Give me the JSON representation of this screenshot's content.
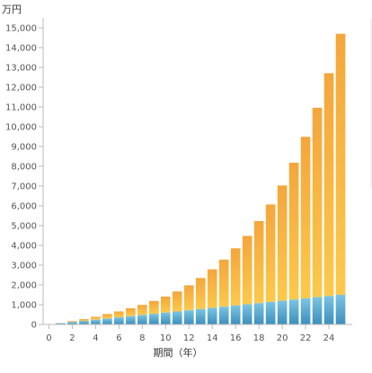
{
  "chart_data": {
    "type": "bar",
    "stacked": true,
    "unit_label": "万円",
    "xlabel": "期間（年）",
    "ylabel": "",
    "ylim": [
      0,
      15500
    ],
    "y_ticks": [
      0,
      1000,
      2000,
      3000,
      4000,
      5000,
      6000,
      7000,
      8000,
      9000,
      10000,
      11000,
      12000,
      13000,
      14000,
      15000
    ],
    "y_tick_labels": [
      "0",
      "1,000",
      "2,000",
      "3,000",
      "4,000",
      "5,000",
      "6,000",
      "7,000",
      "8,000",
      "9,000",
      "10,000",
      "11,000",
      "12,000",
      "13,000",
      "14,000",
      "15,000"
    ],
    "x_ticks": [
      0,
      2,
      4,
      6,
      8,
      10,
      12,
      14,
      16,
      18,
      20,
      22,
      24
    ],
    "x": [
      1,
      2,
      3,
      4,
      5,
      6,
      7,
      8,
      9,
      10,
      11,
      12,
      13,
      14,
      15,
      16,
      17,
      18,
      19,
      20,
      21,
      22,
      23,
      24,
      25
    ],
    "colors": {
      "principal_light": "#7cc4e2",
      "principal_dark": "#3c8fbd",
      "gain_light": "#fcc94c",
      "gain_dark": "#f4a63c"
    },
    "series": [
      {
        "key": "principal",
        "values": [
          60,
          120,
          180,
          240,
          300,
          360,
          420,
          480,
          540,
          600,
          660,
          720,
          780,
          840,
          900,
          960,
          1020,
          1080,
          1140,
          1200,
          1260,
          1320,
          1380,
          1440,
          1500
        ]
      },
      {
        "key": "gain",
        "values": [
          15,
          50,
          90,
          150,
          230,
          300,
          400,
          510,
          650,
          810,
          1010,
          1260,
          1570,
          1950,
          2380,
          2890,
          3460,
          4150,
          4930,
          5830,
          6920,
          8170,
          9580,
          11270,
          13200
        ]
      }
    ]
  }
}
